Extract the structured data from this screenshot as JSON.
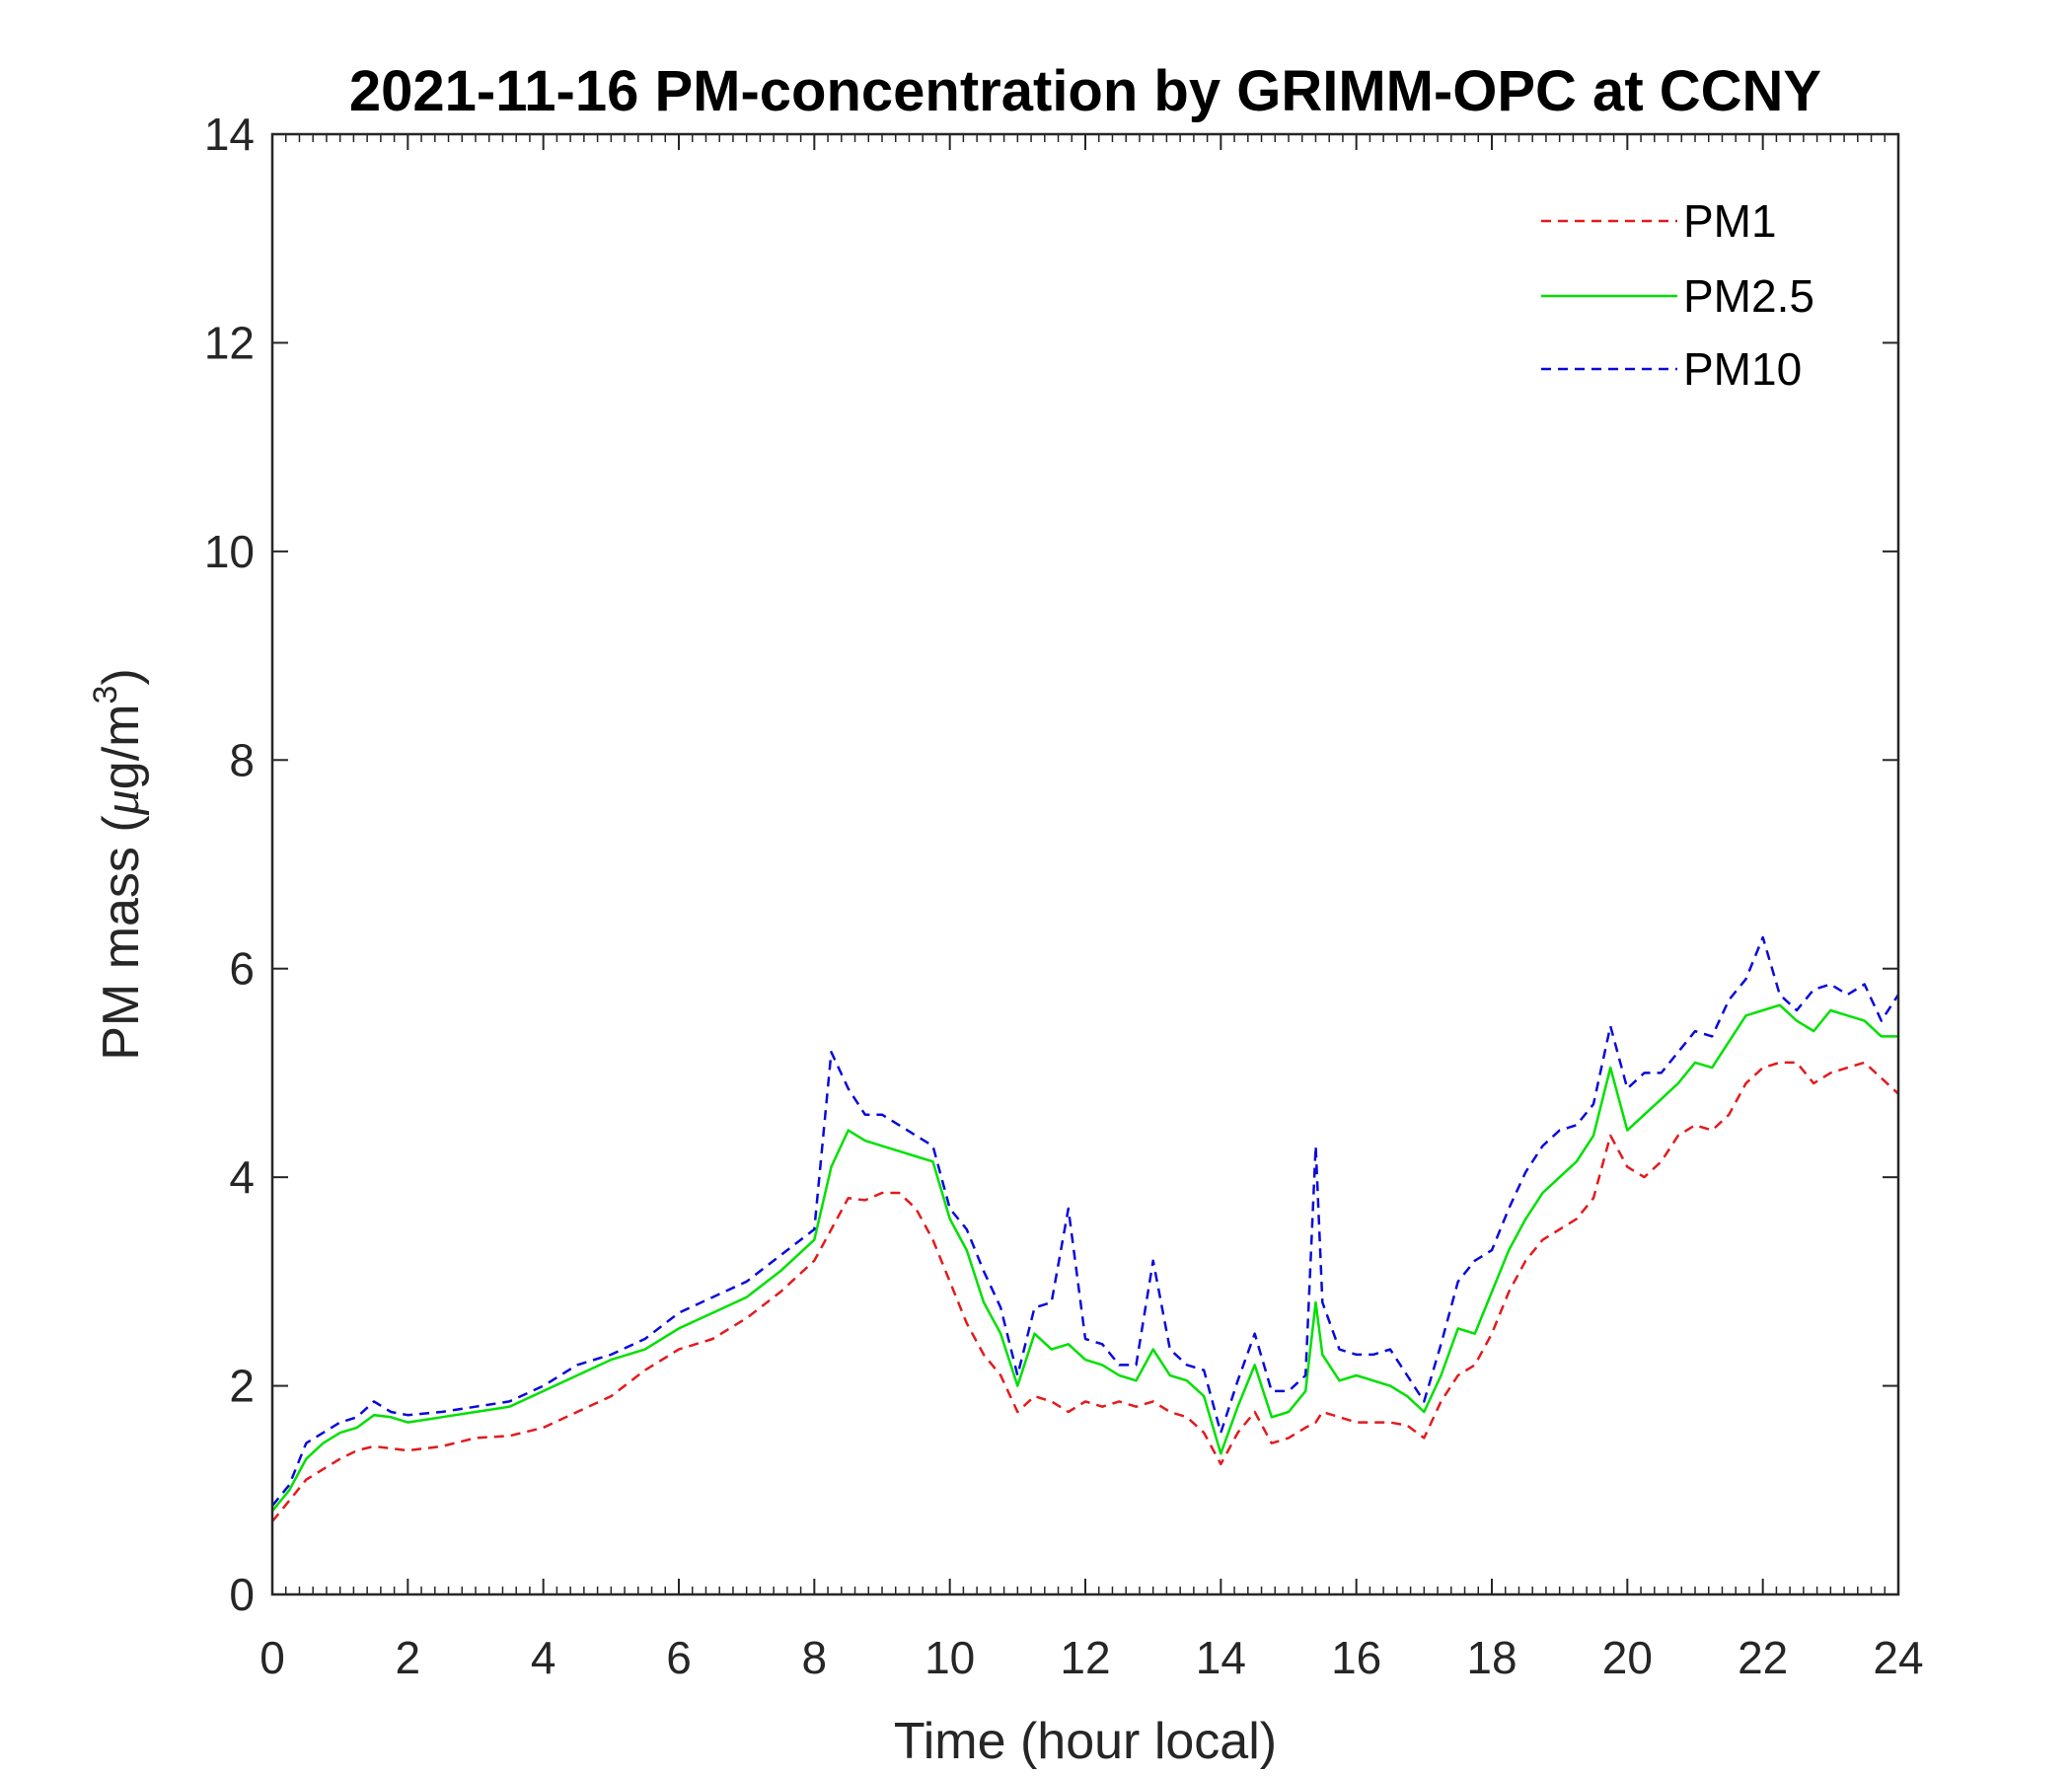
{
  "chart_data": {
    "type": "line",
    "title": "2021-11-16 PM-concentration by GRIMM-OPC at CCNY",
    "xlabel": "Time (hour local)",
    "ylabel_prefix": "PM mass (",
    "ylabel_mu": "μ",
    "ylabel_unit": "g/m",
    "ylabel_sup": "3",
    "ylabel_suffix": ")",
    "xlim": [
      0,
      24
    ],
    "ylim": [
      0,
      14
    ],
    "xticks": [
      0,
      2,
      4,
      6,
      8,
      10,
      12,
      14,
      16,
      18,
      20,
      22,
      24
    ],
    "xtick_labels": [
      "0",
      "2",
      "4",
      "6",
      "8",
      "10",
      "12",
      "14",
      "16",
      "18",
      "20",
      "22",
      "24"
    ],
    "yticks": [
      0,
      2,
      4,
      6,
      8,
      10,
      12,
      14
    ],
    "ytick_labels": [
      "0",
      "2",
      "4",
      "6",
      "8",
      "10",
      "12",
      "14"
    ],
    "legend_position": "top-right",
    "x": [
      0,
      0.25,
      0.5,
      0.75,
      1,
      1.25,
      1.5,
      1.75,
      2,
      2.5,
      3,
      3.5,
      4,
      4.5,
      5,
      5.5,
      6,
      6.5,
      7,
      7.5,
      8,
      8.25,
      8.5,
      8.75,
      9,
      9.25,
      9.5,
      9.75,
      10,
      10.25,
      10.5,
      10.75,
      11,
      11.25,
      11.5,
      11.75,
      12,
      12.25,
      12.5,
      12.75,
      13,
      13.25,
      13.5,
      13.75,
      14,
      14.25,
      14.5,
      14.75,
      15,
      15.25,
      15.4,
      15.5,
      15.75,
      16,
      16.25,
      16.5,
      16.75,
      17,
      17.25,
      17.5,
      17.75,
      18,
      18.25,
      18.5,
      18.75,
      19,
      19.25,
      19.5,
      19.75,
      20,
      20.25,
      20.5,
      20.75,
      21,
      21.25,
      21.5,
      21.75,
      22,
      22.25,
      22.5,
      22.75,
      23,
      23.25,
      23.5,
      23.75,
      24
    ],
    "series": [
      {
        "name": "PM1",
        "color": "#e31a1c",
        "style": "dashed",
        "values": [
          0.7,
          0.9,
          1.1,
          1.2,
          1.3,
          1.38,
          1.42,
          1.4,
          1.38,
          1.42,
          1.5,
          1.52,
          1.6,
          1.75,
          1.9,
          2.15,
          2.35,
          2.45,
          2.65,
          2.9,
          3.2,
          3.5,
          3.8,
          3.78,
          3.85,
          3.85,
          3.7,
          3.4,
          3.0,
          2.6,
          2.3,
          2.1,
          1.75,
          1.9,
          1.85,
          1.75,
          1.85,
          1.8,
          1.85,
          1.8,
          1.85,
          1.75,
          1.7,
          1.55,
          1.25,
          1.55,
          1.75,
          1.45,
          1.5,
          1.6,
          1.65,
          1.75,
          1.7,
          1.65,
          1.65,
          1.65,
          1.62,
          1.5,
          1.85,
          2.1,
          2.2,
          2.5,
          2.9,
          3.2,
          3.4,
          3.5,
          3.6,
          3.8,
          4.4,
          4.1,
          4.0,
          4.15,
          4.4,
          4.5,
          4.45,
          4.6,
          4.9,
          5.05,
          5.1,
          5.1,
          4.9,
          5.0,
          5.05,
          5.1,
          4.95,
          4.8
        ]
      },
      {
        "name": "PM2.5",
        "color": "#00e000",
        "style": "solid",
        "values": [
          0.8,
          1.0,
          1.3,
          1.45,
          1.55,
          1.6,
          1.72,
          1.7,
          1.65,
          1.7,
          1.75,
          1.8,
          1.95,
          2.1,
          2.25,
          2.35,
          2.55,
          2.7,
          2.85,
          3.1,
          3.4,
          4.1,
          4.45,
          4.35,
          4.3,
          4.25,
          4.2,
          4.15,
          3.6,
          3.3,
          2.8,
          2.5,
          2.0,
          2.5,
          2.35,
          2.4,
          2.25,
          2.2,
          2.1,
          2.05,
          2.35,
          2.1,
          2.05,
          1.9,
          1.35,
          1.8,
          2.2,
          1.7,
          1.75,
          1.95,
          2.8,
          2.3,
          2.05,
          2.1,
          2.05,
          2.0,
          1.9,
          1.75,
          2.1,
          2.55,
          2.5,
          2.9,
          3.3,
          3.6,
          3.85,
          4.0,
          4.15,
          4.4,
          5.05,
          4.45,
          4.6,
          4.75,
          4.9,
          5.1,
          5.05,
          5.3,
          5.55,
          5.6,
          5.65,
          5.5,
          5.4,
          5.6,
          5.55,
          5.5,
          5.35,
          5.35
        ]
      },
      {
        "name": "PM10",
        "color": "#0a0adc",
        "style": "dashed",
        "values": [
          0.85,
          1.05,
          1.45,
          1.55,
          1.65,
          1.7,
          1.85,
          1.75,
          1.72,
          1.75,
          1.8,
          1.85,
          2.0,
          2.2,
          2.3,
          2.45,
          2.7,
          2.85,
          3.0,
          3.25,
          3.5,
          5.2,
          4.85,
          4.6,
          4.6,
          4.5,
          4.4,
          4.3,
          3.7,
          3.5,
          3.1,
          2.75,
          2.1,
          2.75,
          2.8,
          3.7,
          2.45,
          2.4,
          2.2,
          2.2,
          3.2,
          2.35,
          2.2,
          2.15,
          1.55,
          2.05,
          2.5,
          1.95,
          1.95,
          2.1,
          4.3,
          2.8,
          2.35,
          2.3,
          2.3,
          2.35,
          2.1,
          1.85,
          2.4,
          3.0,
          3.2,
          3.3,
          3.7,
          4.05,
          4.3,
          4.45,
          4.5,
          4.7,
          5.45,
          4.85,
          5.0,
          5.0,
          5.2,
          5.4,
          5.35,
          5.7,
          5.9,
          6.3,
          5.75,
          5.6,
          5.8,
          5.85,
          5.75,
          5.85,
          5.5,
          5.75
        ]
      }
    ]
  }
}
